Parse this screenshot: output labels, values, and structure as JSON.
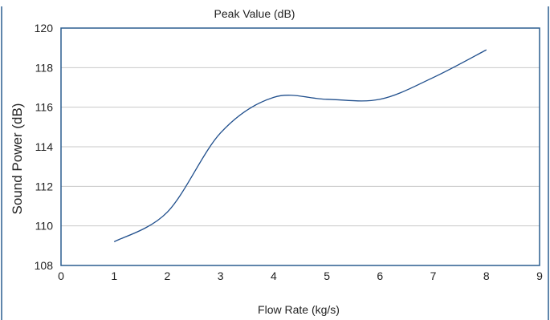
{
  "colors": {
    "frame": "#2a5d8f",
    "grid": "#c8c8c8",
    "line": "#1f4e8c",
    "text": "#222222"
  },
  "chart_data": {
    "type": "line",
    "title": "Peak Value (dB)",
    "xlabel": "Flow Rate (kg/s)",
    "ylabel": "Sound Power (dB)",
    "xlim": [
      0,
      9
    ],
    "ylim": [
      108,
      120
    ],
    "xticks": [
      0,
      1,
      2,
      3,
      4,
      5,
      6,
      7,
      8,
      9
    ],
    "yticks": [
      108,
      110,
      112,
      114,
      116,
      118,
      120
    ],
    "grid": true,
    "legend": "none",
    "series": [
      {
        "x": [
          1,
          2,
          3,
          4,
          5,
          6,
          7,
          8
        ],
        "y": [
          109.2,
          110.7,
          114.7,
          116.5,
          116.4,
          116.4,
          117.5,
          118.9
        ]
      }
    ]
  }
}
